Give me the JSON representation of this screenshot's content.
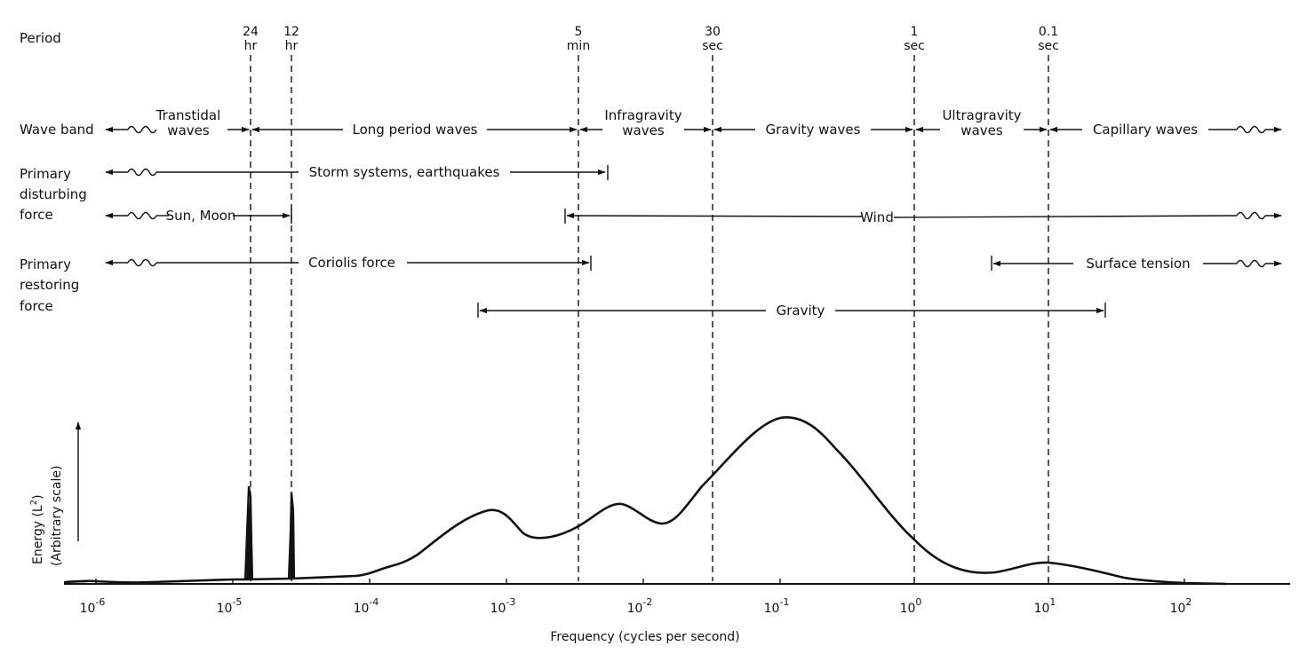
{
  "period_title": "Period",
  "periods": [
    {
      "value": "24",
      "unit": "hr",
      "freq": 1.157e-05
    },
    {
      "value": "12",
      "unit": "hr",
      "freq": 2.315e-05
    },
    {
      "value": "5",
      "unit": "min",
      "freq": 0.00333
    },
    {
      "value": "30",
      "unit": "sec",
      "freq": 0.0333
    },
    {
      "value": "1",
      "unit": "sec",
      "freq": 1
    },
    {
      "value": "0.1",
      "unit": "sec",
      "freq": 10
    }
  ],
  "row_labels": {
    "wave_band": "Wave band",
    "disturbing": [
      "Primary",
      "disturbing",
      "force"
    ],
    "restoring": [
      "Primary",
      "restoring",
      "force"
    ]
  },
  "wave_bands": [
    {
      "label": [
        "Transtidal",
        "waves"
      ]
    },
    {
      "label": [
        "Long period waves"
      ]
    },
    {
      "label": [
        "Infragravity",
        "waves"
      ]
    },
    {
      "label": [
        "Gravity waves"
      ]
    },
    {
      "label": [
        "Ultragravity",
        "waves"
      ]
    },
    {
      "label": [
        "Capillary waves"
      ]
    }
  ],
  "forces": {
    "storm": "Storm systems, earthquakes",
    "sun_moon": "Sun, Moon",
    "wind": "Wind",
    "coriolis": "Coriolis force",
    "surface_tension": "Surface tension",
    "gravity": "Gravity"
  },
  "ylabel_main": "Energy (L",
  "ylabel_sup": "2",
  "ylabel_close": ")",
  "ylabel_sub": "(Arbitrary scale)",
  "xlabel": "Frequency (cycles per second)",
  "x_ticks": [
    {
      "base": "10",
      "exp": "-6"
    },
    {
      "base": "10",
      "exp": "-5"
    },
    {
      "base": "10",
      "exp": "-4"
    },
    {
      "base": "10",
      "exp": "-3"
    },
    {
      "base": "10",
      "exp": "-2"
    },
    {
      "base": "10",
      "exp": "-1"
    },
    {
      "base": "10",
      "exp": "0"
    },
    {
      "base": "10",
      "exp": "1"
    },
    {
      "base": "10",
      "exp": "2"
    }
  ]
}
